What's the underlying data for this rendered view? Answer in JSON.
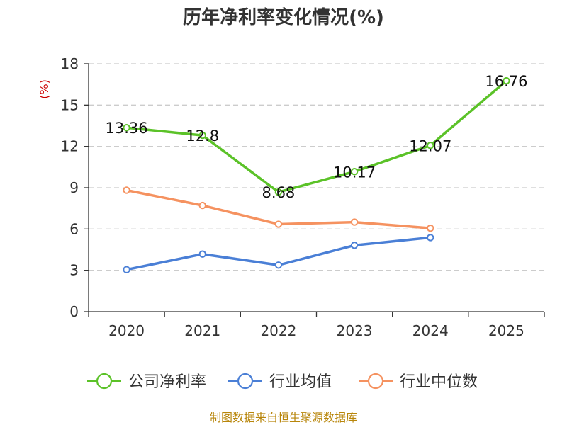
{
  "chart_data": {
    "type": "line",
    "title": "历年净利率变化情况(%)",
    "ylabel": "(%)",
    "categories": [
      "2020",
      "2021",
      "2022",
      "2023",
      "2024",
      "2025"
    ],
    "ylim": [
      0,
      18
    ],
    "yticks": [
      0,
      3,
      6,
      9,
      12,
      15,
      18
    ],
    "grid": true,
    "legend": "bottom",
    "series": [
      {
        "name": "公司净利率",
        "color": "#5bc228",
        "values": [
          13.36,
          12.8,
          8.68,
          10.17,
          12.07,
          16.76
        ],
        "labels": [
          "13.36",
          "12.8",
          "8.68",
          "10.17",
          "12.07",
          "16.76"
        ]
      },
      {
        "name": "行业均值",
        "color": "#4a7fd6",
        "values": [
          3.05,
          4.18,
          3.38,
          4.82,
          5.38,
          null
        ]
      },
      {
        "name": "行业中位数",
        "color": "#f59260",
        "values": [
          8.82,
          7.71,
          6.35,
          6.5,
          6.06,
          null
        ]
      }
    ],
    "source": "制图数据来自恒生聚源数据库"
  }
}
